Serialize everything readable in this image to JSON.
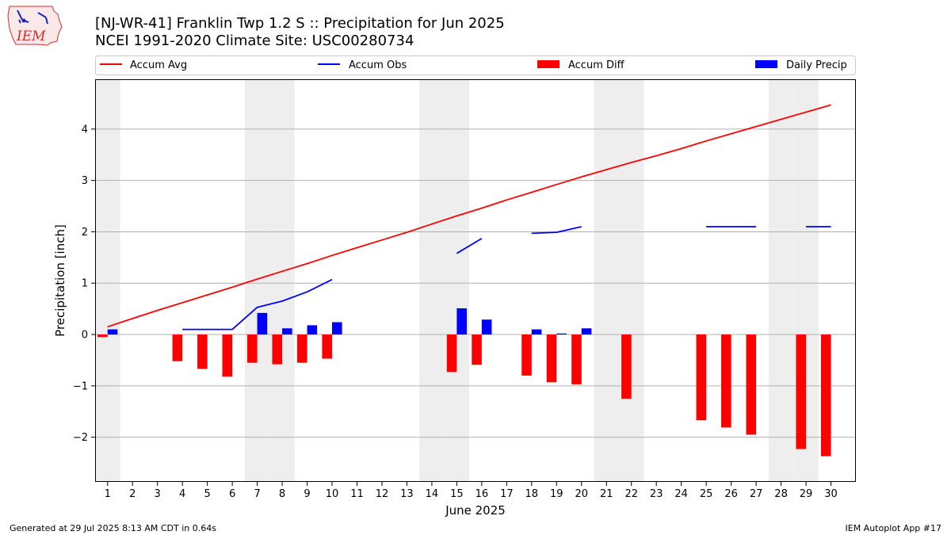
{
  "colors": {
    "avg": "#ff0000",
    "obs": "#0000ff",
    "diff": "#ff0000",
    "daily": "#0000ff",
    "weekend_band": "#eeeeee",
    "grid": "#b0b0b0"
  },
  "logo": {
    "text": "IEM"
  },
  "footer": {
    "generated": "Generated at 29 Jul 2025 8:13 AM CDT in 0.64s",
    "app": "IEM Autoplot App #17"
  },
  "chart_data": {
    "type": "bar",
    "title": "[NJ-WR-41] Franklin Twp 1.2 S :: Precipitation for Jun 2025",
    "subtitle": "NCEI 1991-2020 Climate Site: USC00280734",
    "xlabel": "June 2025",
    "ylabel": "Precipitation [inch]",
    "xlim": [
      0.5,
      31
    ],
    "ylim": [
      -2.87,
      4.97
    ],
    "yticks": [
      -2,
      -1,
      0,
      1,
      2,
      3,
      4
    ],
    "ytick_labels": [
      "−2",
      "−1",
      "0",
      "1",
      "2",
      "3",
      "4"
    ],
    "grid": "horizontal",
    "legend_position": "top",
    "weekend_days": [
      1,
      7,
      8,
      14,
      15,
      21,
      22,
      28,
      29
    ],
    "legend": [
      "Accum Avg",
      "Accum Obs",
      "Accum Diff",
      "Daily Precip"
    ],
    "x": [
      1,
      2,
      3,
      4,
      5,
      6,
      7,
      8,
      9,
      10,
      11,
      12,
      13,
      14,
      15,
      16,
      17,
      18,
      19,
      20,
      21,
      22,
      23,
      24,
      25,
      26,
      27,
      28,
      29,
      30
    ],
    "series": [
      {
        "name": "Accum Avg",
        "type": "line",
        "values": [
          0.15,
          0.31,
          0.47,
          0.62,
          0.77,
          0.92,
          1.08,
          1.23,
          1.38,
          1.54,
          1.69,
          1.84,
          1.99,
          2.15,
          2.31,
          2.46,
          2.62,
          2.77,
          2.92,
          3.07,
          3.21,
          3.35,
          3.48,
          3.62,
          3.77,
          3.91,
          4.05,
          4.19,
          4.33,
          4.47
        ]
      },
      {
        "name": "Accum Obs",
        "type": "line",
        "values": [
          null,
          null,
          null,
          0.1,
          0.1,
          0.1,
          0.53,
          0.65,
          0.83,
          1.07,
          null,
          null,
          null,
          null,
          1.58,
          1.87,
          null,
          1.97,
          1.99,
          2.1,
          null,
          null,
          null,
          null,
          2.1,
          2.1,
          2.1,
          null,
          2.1,
          2.1
        ]
      },
      {
        "name": "Accum Diff",
        "type": "bar",
        "values": [
          -0.05,
          null,
          null,
          -0.52,
          -0.67,
          -0.82,
          -0.55,
          -0.58,
          -0.55,
          -0.47,
          null,
          null,
          null,
          null,
          -0.73,
          -0.59,
          null,
          -0.8,
          -0.93,
          -0.97,
          null,
          -1.25,
          null,
          null,
          -1.67,
          -1.81,
          -1.95,
          null,
          -2.23,
          -2.37
        ]
      },
      {
        "name": "Daily Precip",
        "type": "bar",
        "values": [
          0.1,
          null,
          null,
          null,
          null,
          null,
          0.42,
          0.12,
          0.18,
          0.24,
          null,
          null,
          null,
          null,
          0.51,
          0.29,
          null,
          0.1,
          0.02,
          0.12,
          null,
          null,
          null,
          null,
          null,
          null,
          null,
          null,
          null,
          null
        ]
      }
    ]
  }
}
